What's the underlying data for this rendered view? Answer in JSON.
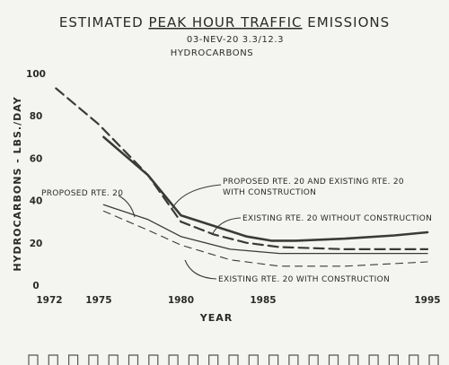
{
  "chart_data": {
    "type": "line",
    "title_parts": [
      "ESTIMATED ",
      "PEAK HOUR TRAFFIC",
      " EMISSIONS"
    ],
    "subtitle_1": "03-NEV-20 3.3/12.3",
    "subtitle_2": "HYDROCARBONS",
    "xlabel": "YEAR",
    "ylabel": "HYDROCARBONS - LBS./DAY",
    "x_ticks": [
      1972,
      1975,
      1980,
      1985,
      1995
    ],
    "y_ticks": [
      0,
      20,
      40,
      60,
      80,
      100
    ],
    "xlim": [
      1972,
      1995
    ],
    "ylim": [
      0,
      100
    ],
    "grid": false,
    "series": [
      {
        "name": "PROPOSED RTE. 20 AND EXISTING RTE. 20 WITH CONSTRUCTION",
        "style": "solid-bold",
        "x": [
          1975.3,
          1978,
          1980,
          1982,
          1984,
          1985.5,
          1987,
          1990,
          1993,
          1995
        ],
        "y": [
          70,
          52,
          33,
          28,
          23,
          21,
          21,
          22,
          23.5,
          25
        ]
      },
      {
        "name": "",
        "style": "dashed-bold",
        "x": [
          1972.4,
          1975,
          1978,
          1980,
          1982,
          1984,
          1986,
          1990,
          1995
        ],
        "y": [
          93,
          76,
          52,
          30,
          24,
          20,
          18,
          17,
          17
        ]
      },
      {
        "name": "EXISTING RTE. 20 WITHOUT CONSTRUCTION",
        "style": "solid-thin",
        "x": [
          1975.3,
          1978,
          1980,
          1983,
          1986,
          1990,
          1995
        ],
        "y": [
          38,
          31,
          23,
          17,
          15,
          15,
          15
        ]
      },
      {
        "name": "EXISTING RTE. 20 WITH CONSTRUCTION",
        "style": "dashed-thin",
        "x": [
          1975.3,
          1978,
          1980,
          1983,
          1986,
          1990,
          1995
        ],
        "y": [
          35,
          26,
          19,
          12,
          9,
          9,
          11
        ]
      }
    ],
    "annotations": [
      {
        "id": "ann-proposed-existing",
        "lines": [
          "PROPOSED RTE. 20 AND EXISTING RTE. 20",
          "WITH CONSTRUCTION"
        ]
      },
      {
        "id": "ann-existing-without",
        "lines": [
          "EXISTING RTE. 20 WITHOUT CONSTRUCTION"
        ]
      },
      {
        "id": "ann-proposed",
        "lines": [
          "PROPOSED RTE. 20"
        ]
      },
      {
        "id": "ann-existing-with",
        "lines": [
          "EXISTING RTE. 20 WITH CONSTRUCTION"
        ]
      }
    ]
  }
}
